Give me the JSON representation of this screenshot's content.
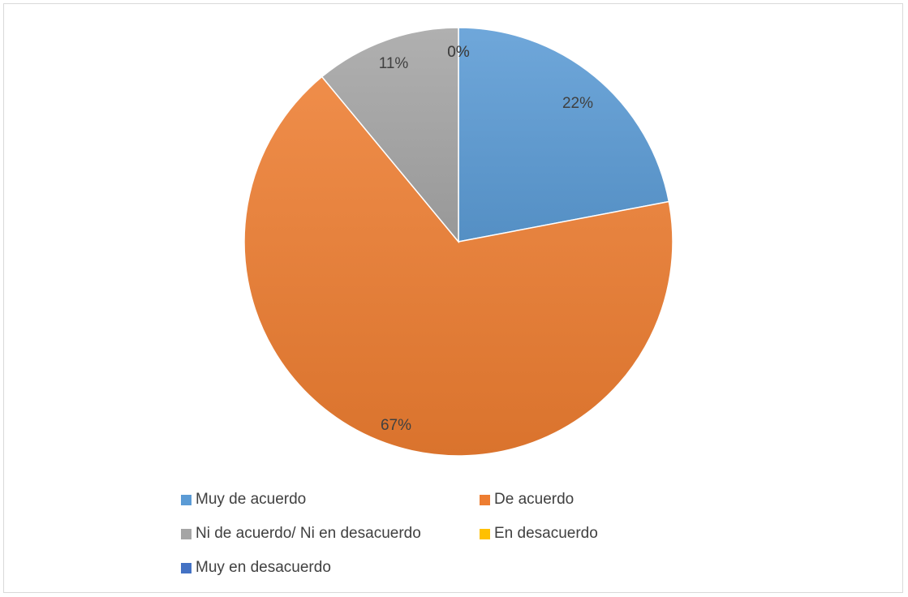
{
  "chart_data": {
    "type": "pie",
    "categories": [
      "Muy de acuerdo",
      "De acuerdo",
      "Ni de acuerdo/ Ni en desacuerdo",
      "En desacuerdo",
      "Muy en desacuerdo"
    ],
    "values": [
      22,
      67,
      11,
      0,
      0
    ],
    "data_labels": [
      "22%",
      "67%",
      "11%",
      "0%",
      "0%"
    ],
    "colors": [
      "#5b9bd5",
      "#ed7d31",
      "#a5a5a5",
      "#ffc000",
      "#4472c4"
    ],
    "title": "",
    "legend_position": "bottom"
  }
}
